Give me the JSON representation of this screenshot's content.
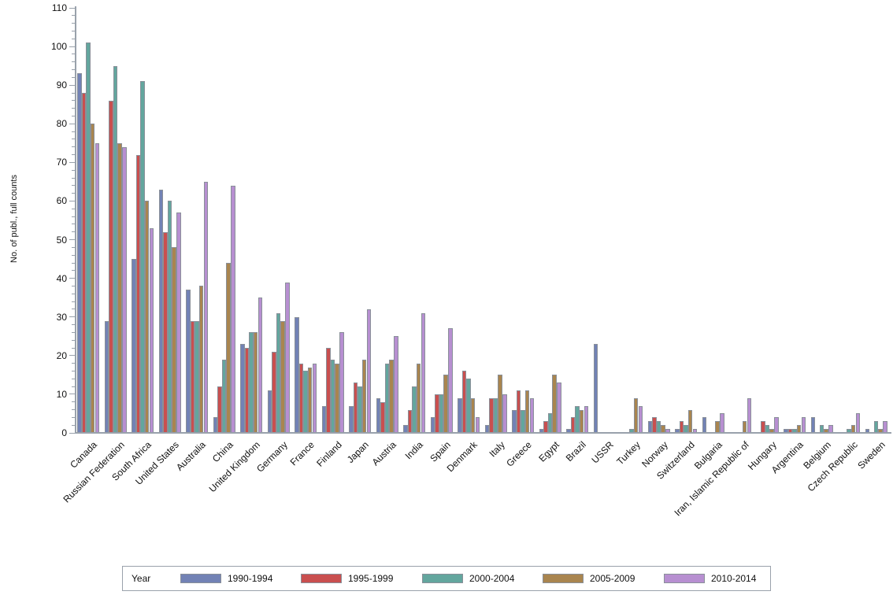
{
  "chart_data": {
    "type": "bar",
    "title": "",
    "xlabel": "",
    "ylabel": "No. of publ., full counts",
    "ylim": [
      0,
      110
    ],
    "ytick_step": 10,
    "yminor_step": 2,
    "grid": false,
    "legend_position": "bottom",
    "legend_title": "Year",
    "categories": [
      "Canada",
      "Russian Federation",
      "South Africa",
      "United States",
      "Australia",
      "China",
      "United Kingdom",
      "Germany",
      "France",
      "Finland",
      "Japan",
      "Austria",
      "India",
      "Spain",
      "Denmark",
      "Italy",
      "Greece",
      "Egypt",
      "Brazil",
      "USSR",
      "Turkey",
      "Norway",
      "Switzerland",
      "Bulgaria",
      "Iran, Islamic Republic of",
      "Hungary",
      "Argentina",
      "Belgium",
      "Czech Republic",
      "Sweden"
    ],
    "series": [
      {
        "name": "1990-1994",
        "color": "#7282b5",
        "values": [
          93,
          29,
          45,
          63,
          37,
          4,
          23,
          11,
          30,
          7,
          7,
          9,
          2,
          4,
          9,
          2,
          6,
          1,
          1,
          23,
          0,
          3,
          1,
          4,
          0,
          0,
          1,
          4,
          0,
          1
        ]
      },
      {
        "name": "1995-1999",
        "color": "#c94f4f",
        "values": [
          88,
          86,
          72,
          52,
          29,
          12,
          22,
          21,
          18,
          22,
          13,
          8,
          6,
          10,
          16,
          9,
          11,
          3,
          4,
          0,
          0,
          4,
          3,
          0,
          0,
          3,
          1,
          0,
          0,
          0
        ]
      },
      {
        "name": "2000-2004",
        "color": "#63a69e",
        "values": [
          101,
          95,
          91,
          60,
          29,
          19,
          26,
          31,
          16,
          19,
          12,
          18,
          12,
          10,
          14,
          9,
          6,
          5,
          7,
          0,
          1,
          3,
          2,
          0,
          0,
          2,
          1,
          2,
          1,
          3
        ]
      },
      {
        "name": "2005-2009",
        "color": "#a9854f",
        "values": [
          80,
          75,
          60,
          48,
          38,
          44,
          26,
          29,
          17,
          18,
          19,
          19,
          18,
          15,
          9,
          15,
          11,
          15,
          6,
          0,
          9,
          2,
          6,
          3,
          3,
          1,
          2,
          1,
          2,
          1
        ]
      },
      {
        "name": "2010-2014",
        "color": "#b78fd1",
        "values": [
          75,
          74,
          53,
          57,
          65,
          64,
          35,
          39,
          18,
          26,
          32,
          25,
          31,
          27,
          4,
          10,
          9,
          13,
          7,
          0,
          7,
          1,
          1,
          5,
          9,
          4,
          4,
          2,
          5,
          3
        ]
      }
    ]
  },
  "colors": {
    "axis": "#99a1ab",
    "bar_outline": "#8a9099",
    "text": "#111111"
  }
}
